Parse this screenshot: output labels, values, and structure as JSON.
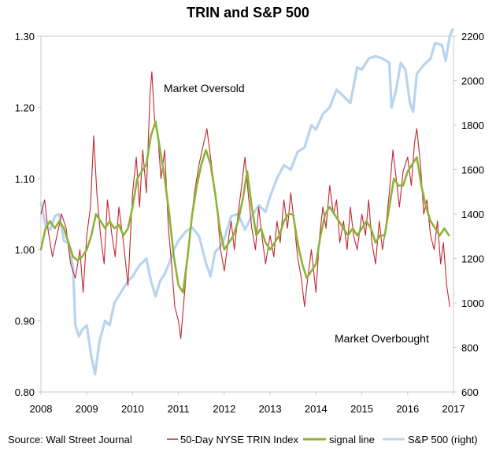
{
  "chart_data": {
    "type": "line",
    "title": "TRIN and S&P 500",
    "source": "Source: Wall Street Journal",
    "x_ticks": [
      "2008",
      "2009",
      "2010",
      "2011",
      "2012",
      "2013",
      "2014",
      "2015",
      "2016",
      "2017"
    ],
    "xlim": [
      2008,
      2017
    ],
    "y_left": {
      "lim": [
        0.8,
        1.3
      ],
      "ticks": [
        "0.80",
        "0.90",
        "1.00",
        "1.10",
        "1.20",
        "1.30"
      ]
    },
    "y_right": {
      "lim": [
        600,
        2200
      ],
      "ticks": [
        "600",
        "800",
        "1000",
        "1200",
        "1400",
        "1600",
        "1800",
        "2000",
        "2200"
      ]
    },
    "annotations": [
      {
        "text": "Market Oversold",
        "x": 2010.65,
        "y": 1.225
      },
      {
        "text": "Market Overbought",
        "x": 2014.4,
        "y": 0.875
      }
    ],
    "legend": {
      "position": "bottom"
    },
    "series": [
      {
        "name": "50-Day NYSE TRIN Index",
        "axis": "left",
        "color": "#c0272d",
        "points": [
          [
            2008.0,
            1.05
          ],
          [
            2008.08,
            1.07
          ],
          [
            2008.15,
            1.03
          ],
          [
            2008.25,
            0.99
          ],
          [
            2008.35,
            1.02
          ],
          [
            2008.45,
            1.05
          ],
          [
            2008.55,
            1.03
          ],
          [
            2008.65,
            0.98
          ],
          [
            2008.75,
            0.96
          ],
          [
            2008.85,
            1.0
          ],
          [
            2008.92,
            0.94
          ],
          [
            2009.0,
            1.02
          ],
          [
            2009.08,
            1.06
          ],
          [
            2009.15,
            1.16
          ],
          [
            2009.22,
            1.08
          ],
          [
            2009.3,
            1.02
          ],
          [
            2009.38,
            0.98
          ],
          [
            2009.45,
            1.07
          ],
          [
            2009.55,
            1.02
          ],
          [
            2009.62,
            0.99
          ],
          [
            2009.7,
            1.06
          ],
          [
            2009.8,
            1.01
          ],
          [
            2009.9,
            0.95
          ],
          [
            2010.0,
            1.08
          ],
          [
            2010.08,
            1.13
          ],
          [
            2010.15,
            1.06
          ],
          [
            2010.22,
            1.14
          ],
          [
            2010.3,
            1.08
          ],
          [
            2010.38,
            1.22
          ],
          [
            2010.42,
            1.25
          ],
          [
            2010.48,
            1.18
          ],
          [
            2010.55,
            1.16
          ],
          [
            2010.62,
            1.1
          ],
          [
            2010.7,
            1.14
          ],
          [
            2010.78,
            1.03
          ],
          [
            2010.85,
            0.98
          ],
          [
            2010.92,
            0.92
          ],
          [
            2011.0,
            0.9
          ],
          [
            2011.05,
            0.875
          ],
          [
            2011.12,
            0.93
          ],
          [
            2011.2,
            0.99
          ],
          [
            2011.28,
            1.04
          ],
          [
            2011.35,
            1.08
          ],
          [
            2011.45,
            1.12
          ],
          [
            2011.55,
            1.15
          ],
          [
            2011.62,
            1.17
          ],
          [
            2011.7,
            1.13
          ],
          [
            2011.78,
            1.09
          ],
          [
            2011.85,
            1.05
          ],
          [
            2011.92,
            1.0
          ],
          [
            2012.0,
            0.97
          ],
          [
            2012.08,
            1.01
          ],
          [
            2012.15,
            1.04
          ],
          [
            2012.22,
            1.0
          ],
          [
            2012.3,
            1.05
          ],
          [
            2012.38,
            1.09
          ],
          [
            2012.45,
            1.13
          ],
          [
            2012.52,
            1.08
          ],
          [
            2012.6,
            1.03
          ],
          [
            2012.68,
            1.0
          ],
          [
            2012.75,
            1.06
          ],
          [
            2012.82,
            1.02
          ],
          [
            2012.9,
            0.98
          ],
          [
            2013.0,
            1.02
          ],
          [
            2013.08,
            0.99
          ],
          [
            2013.15,
            1.04
          ],
          [
            2013.22,
            1.01
          ],
          [
            2013.3,
            1.07
          ],
          [
            2013.38,
            1.03
          ],
          [
            2013.45,
            1.08
          ],
          [
            2013.52,
            1.04
          ],
          [
            2013.6,
            0.99
          ],
          [
            2013.68,
            0.96
          ],
          [
            2013.75,
            0.92
          ],
          [
            2013.82,
            0.96
          ],
          [
            2013.9,
            1.0
          ],
          [
            2014.0,
            0.94
          ],
          [
            2014.08,
            1.02
          ],
          [
            2014.15,
            1.06
          ],
          [
            2014.22,
            1.03
          ],
          [
            2014.3,
            1.09
          ],
          [
            2014.38,
            1.05
          ],
          [
            2014.45,
            1.07
          ],
          [
            2014.52,
            1.01
          ],
          [
            2014.6,
            1.04
          ],
          [
            2014.68,
            1.0
          ],
          [
            2014.75,
            1.06
          ],
          [
            2014.82,
            1.02
          ],
          [
            2014.9,
            1.0
          ],
          [
            2015.0,
            1.05
          ],
          [
            2015.08,
            1.02
          ],
          [
            2015.15,
            1.07
          ],
          [
            2015.22,
            1.01
          ],
          [
            2015.3,
            0.98
          ],
          [
            2015.38,
            1.04
          ],
          [
            2015.45,
            1.0
          ],
          [
            2015.52,
            1.03
          ],
          [
            2015.6,
            1.08
          ],
          [
            2015.68,
            1.14
          ],
          [
            2015.75,
            1.1
          ],
          [
            2015.82,
            1.06
          ],
          [
            2015.9,
            1.11
          ],
          [
            2016.0,
            1.13
          ],
          [
            2016.08,
            1.09
          ],
          [
            2016.15,
            1.15
          ],
          [
            2016.2,
            1.17
          ],
          [
            2016.28,
            1.12
          ],
          [
            2016.35,
            1.05
          ],
          [
            2016.42,
            1.07
          ],
          [
            2016.5,
            1.02
          ],
          [
            2016.58,
            1.0
          ],
          [
            2016.65,
            1.04
          ],
          [
            2016.72,
            0.98
          ],
          [
            2016.78,
            1.01
          ],
          [
            2016.85,
            0.95
          ],
          [
            2016.92,
            0.92
          ]
        ]
      },
      {
        "name": "signal line",
        "axis": "left",
        "color": "#8db33a",
        "points": [
          [
            2008.0,
            1.0
          ],
          [
            2008.1,
            1.03
          ],
          [
            2008.2,
            1.04
          ],
          [
            2008.3,
            1.03
          ],
          [
            2008.4,
            1.04
          ],
          [
            2008.5,
            1.03
          ],
          [
            2008.6,
            1.01
          ],
          [
            2008.7,
            0.99
          ],
          [
            2008.8,
            0.985
          ],
          [
            2008.9,
            0.99
          ],
          [
            2009.0,
            1.0
          ],
          [
            2009.1,
            1.02
          ],
          [
            2009.2,
            1.05
          ],
          [
            2009.3,
            1.04
          ],
          [
            2009.4,
            1.03
          ],
          [
            2009.5,
            1.04
          ],
          [
            2009.6,
            1.03
          ],
          [
            2009.7,
            1.035
          ],
          [
            2009.8,
            1.02
          ],
          [
            2009.9,
            1.03
          ],
          [
            2010.0,
            1.06
          ],
          [
            2010.1,
            1.1
          ],
          [
            2010.2,
            1.11
          ],
          [
            2010.3,
            1.12
          ],
          [
            2010.4,
            1.16
          ],
          [
            2010.5,
            1.18
          ],
          [
            2010.6,
            1.14
          ],
          [
            2010.7,
            1.1
          ],
          [
            2010.8,
            1.05
          ],
          [
            2010.9,
            0.99
          ],
          [
            2011.0,
            0.95
          ],
          [
            2011.1,
            0.94
          ],
          [
            2011.2,
            0.99
          ],
          [
            2011.3,
            1.05
          ],
          [
            2011.4,
            1.09
          ],
          [
            2011.5,
            1.12
          ],
          [
            2011.6,
            1.14
          ],
          [
            2011.7,
            1.12
          ],
          [
            2011.8,
            1.08
          ],
          [
            2011.9,
            1.03
          ],
          [
            2012.0,
            1.0
          ],
          [
            2012.1,
            1.01
          ],
          [
            2012.2,
            1.02
          ],
          [
            2012.3,
            1.04
          ],
          [
            2012.4,
            1.07
          ],
          [
            2012.5,
            1.11
          ],
          [
            2012.6,
            1.06
          ],
          [
            2012.7,
            1.02
          ],
          [
            2012.8,
            1.03
          ],
          [
            2012.9,
            1.01
          ],
          [
            2013.0,
            1.0
          ],
          [
            2013.1,
            1.01
          ],
          [
            2013.2,
            1.02
          ],
          [
            2013.3,
            1.04
          ],
          [
            2013.4,
            1.05
          ],
          [
            2013.5,
            1.05
          ],
          [
            2013.6,
            1.01
          ],
          [
            2013.7,
            0.98
          ],
          [
            2013.8,
            0.96
          ],
          [
            2013.9,
            0.97
          ],
          [
            2014.0,
            0.98
          ],
          [
            2014.1,
            1.02
          ],
          [
            2014.2,
            1.05
          ],
          [
            2014.3,
            1.06
          ],
          [
            2014.4,
            1.05
          ],
          [
            2014.5,
            1.04
          ],
          [
            2014.6,
            1.03
          ],
          [
            2014.7,
            1.02
          ],
          [
            2014.8,
            1.03
          ],
          [
            2014.9,
            1.02
          ],
          [
            2015.0,
            1.03
          ],
          [
            2015.1,
            1.04
          ],
          [
            2015.2,
            1.03
          ],
          [
            2015.3,
            1.01
          ],
          [
            2015.4,
            1.02
          ],
          [
            2015.5,
            1.02
          ],
          [
            2015.6,
            1.06
          ],
          [
            2015.7,
            1.1
          ],
          [
            2015.8,
            1.09
          ],
          [
            2015.9,
            1.09
          ],
          [
            2016.0,
            1.11
          ],
          [
            2016.1,
            1.12
          ],
          [
            2016.2,
            1.13
          ],
          [
            2016.3,
            1.09
          ],
          [
            2016.4,
            1.06
          ],
          [
            2016.5,
            1.04
          ],
          [
            2016.6,
            1.03
          ],
          [
            2016.7,
            1.02
          ],
          [
            2016.8,
            1.03
          ],
          [
            2016.9,
            1.02
          ]
        ]
      },
      {
        "name": "S&P 500 (right)",
        "axis": "right",
        "color": "#b8d4ee",
        "points": [
          [
            2008.0,
            1450
          ],
          [
            2008.1,
            1350
          ],
          [
            2008.2,
            1330
          ],
          [
            2008.3,
            1390
          ],
          [
            2008.4,
            1400
          ],
          [
            2008.5,
            1280
          ],
          [
            2008.6,
            1270
          ],
          [
            2008.7,
            1160
          ],
          [
            2008.75,
            900
          ],
          [
            2008.83,
            850
          ],
          [
            2008.9,
            880
          ],
          [
            2009.0,
            900
          ],
          [
            2009.1,
            760
          ],
          [
            2009.18,
            680
          ],
          [
            2009.28,
            830
          ],
          [
            2009.4,
            920
          ],
          [
            2009.5,
            900
          ],
          [
            2009.6,
            1000
          ],
          [
            2009.75,
            1050
          ],
          [
            2009.9,
            1100
          ],
          [
            2010.0,
            1120
          ],
          [
            2010.15,
            1170
          ],
          [
            2010.3,
            1200
          ],
          [
            2010.4,
            1100
          ],
          [
            2010.5,
            1030
          ],
          [
            2010.6,
            1100
          ],
          [
            2010.7,
            1130
          ],
          [
            2010.8,
            1180
          ],
          [
            2010.9,
            1240
          ],
          [
            2011.0,
            1280
          ],
          [
            2011.15,
            1320
          ],
          [
            2011.3,
            1340
          ],
          [
            2011.45,
            1300
          ],
          [
            2011.6,
            1180
          ],
          [
            2011.7,
            1120
          ],
          [
            2011.8,
            1230
          ],
          [
            2011.9,
            1250
          ],
          [
            2012.0,
            1290
          ],
          [
            2012.15,
            1390
          ],
          [
            2012.3,
            1400
          ],
          [
            2012.45,
            1330
          ],
          [
            2012.6,
            1390
          ],
          [
            2012.75,
            1440
          ],
          [
            2012.9,
            1410
          ],
          [
            2013.0,
            1480
          ],
          [
            2013.15,
            1560
          ],
          [
            2013.3,
            1620
          ],
          [
            2013.45,
            1600
          ],
          [
            2013.6,
            1680
          ],
          [
            2013.75,
            1700
          ],
          [
            2013.9,
            1800
          ],
          [
            2014.0,
            1780
          ],
          [
            2014.15,
            1850
          ],
          [
            2014.3,
            1880
          ],
          [
            2014.45,
            1960
          ],
          [
            2014.6,
            1930
          ],
          [
            2014.75,
            1900
          ],
          [
            2014.9,
            2060
          ],
          [
            2015.0,
            2050
          ],
          [
            2015.15,
            2100
          ],
          [
            2015.3,
            2110
          ],
          [
            2015.45,
            2100
          ],
          [
            2015.6,
            2080
          ],
          [
            2015.65,
            1880
          ],
          [
            2015.75,
            1960
          ],
          [
            2015.85,
            2080
          ],
          [
            2015.95,
            2050
          ],
          [
            2016.05,
            1900
          ],
          [
            2016.12,
            1860
          ],
          [
            2016.2,
            2030
          ],
          [
            2016.35,
            2070
          ],
          [
            2016.5,
            2100
          ],
          [
            2016.6,
            2170
          ],
          [
            2016.75,
            2160
          ],
          [
            2016.83,
            2090
          ],
          [
            2016.92,
            2200
          ],
          [
            2016.98,
            2230
          ]
        ]
      }
    ]
  }
}
